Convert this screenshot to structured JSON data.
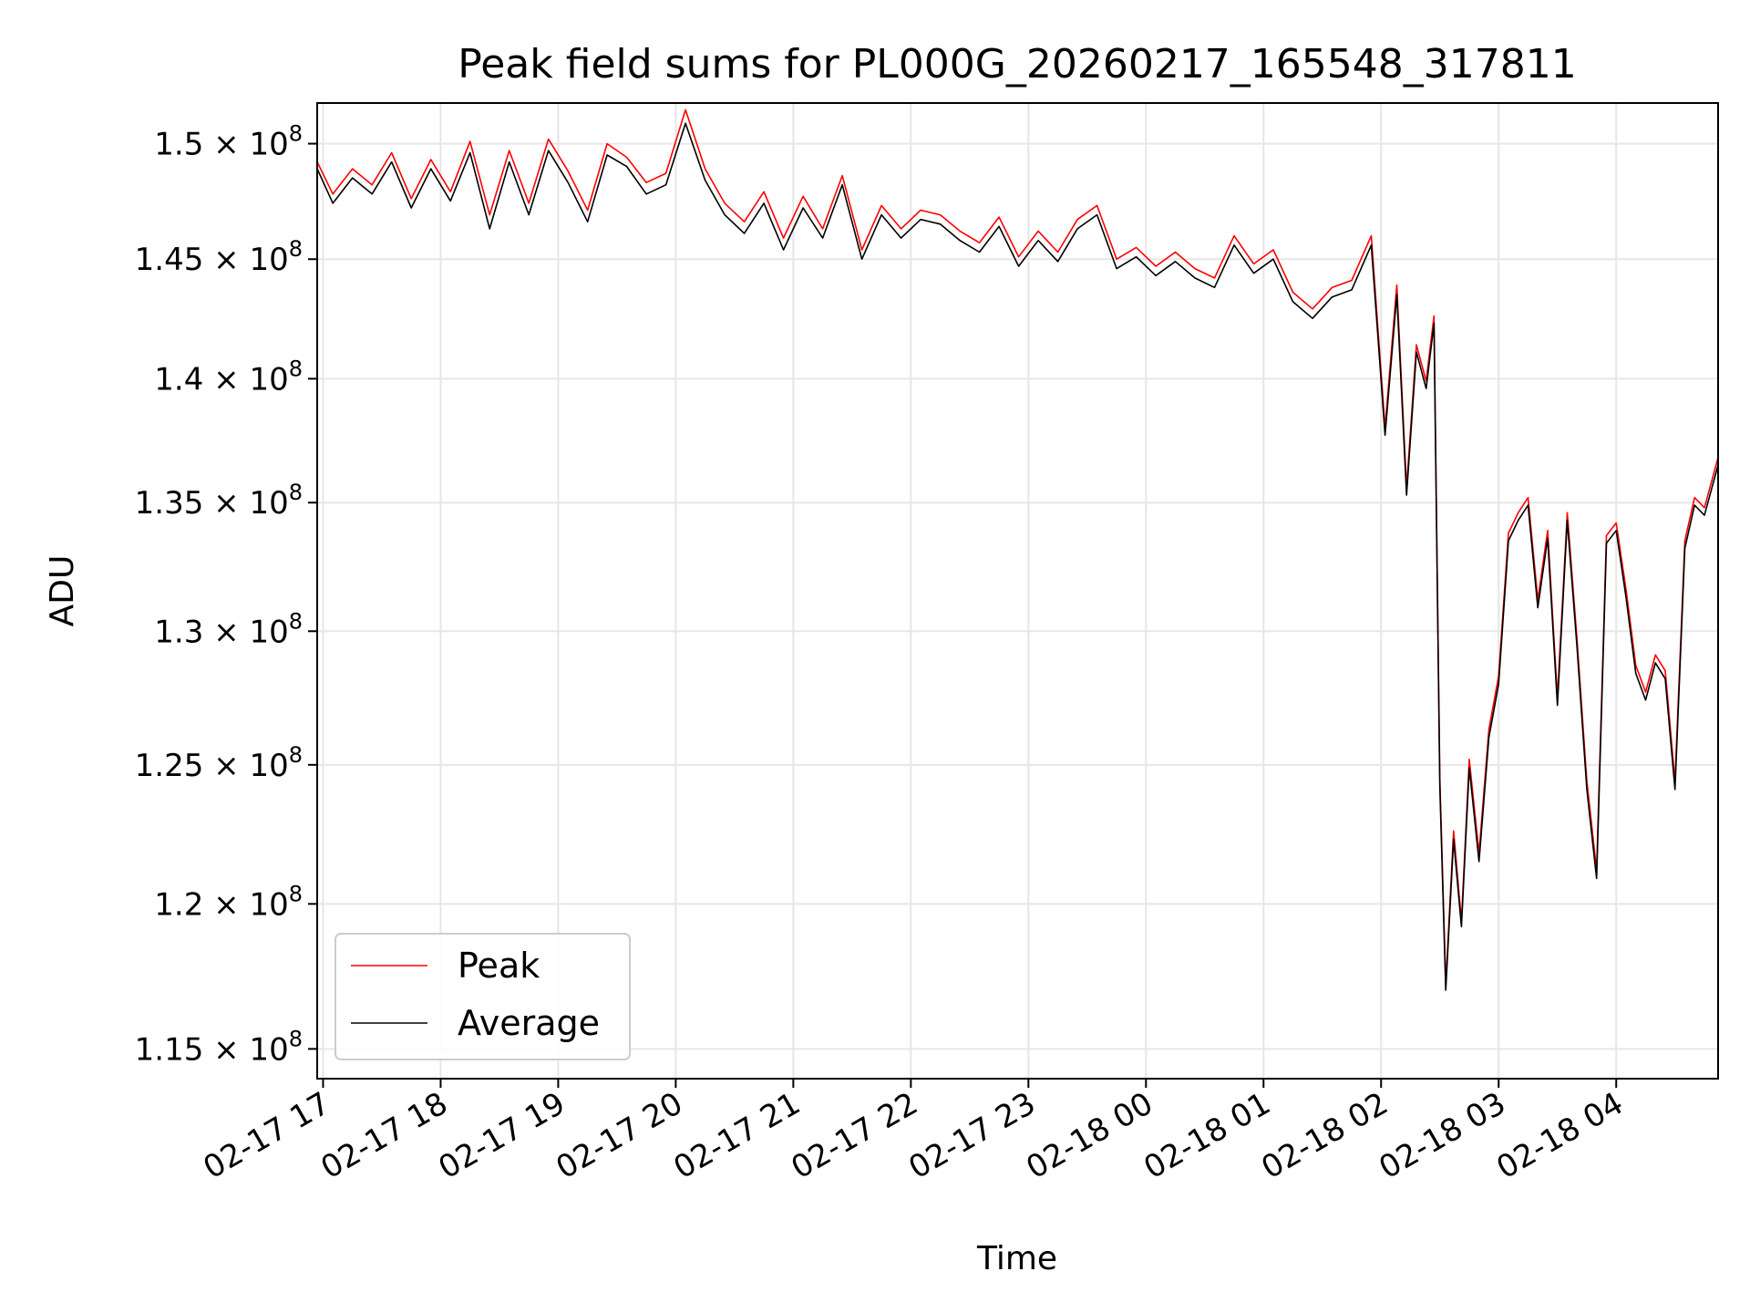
{
  "chart_data": {
    "type": "line",
    "title": "Peak field sums for PL000G_20260217_165548_317811",
    "xlabel": "Time",
    "ylabel": "ADU",
    "x_range": [
      "2026-02-17 16:57",
      "2026-02-18 04:52"
    ],
    "ylim": [
      114000000,
      151800000
    ],
    "y_scale": "log",
    "grid": true,
    "legend_position": "lower-left",
    "x_ticks": [
      "02-17 17",
      "02-17 18",
      "02-17 19",
      "02-17 20",
      "02-17 21",
      "02-17 22",
      "02-17 23",
      "02-18 00",
      "02-18 01",
      "02-18 02",
      "02-18 03",
      "02-18 04"
    ],
    "y_ticks": [
      {
        "value": 115000000,
        "mantissa": "1.15"
      },
      {
        "value": 120000000,
        "mantissa": "1.2"
      },
      {
        "value": 125000000,
        "mantissa": "1.25"
      },
      {
        "value": 130000000,
        "mantissa": "1.3"
      },
      {
        "value": 135000000,
        "mantissa": "1.35"
      },
      {
        "value": 140000000,
        "mantissa": "1.4"
      },
      {
        "value": 145000000,
        "mantissa": "1.45"
      },
      {
        "value": 150000000,
        "mantissa": "1.5"
      }
    ],
    "y_tick_format": {
      "times": "×",
      "base": "10",
      "exponent": "8"
    },
    "series": [
      {
        "name": "Peak",
        "color": "#ff0000",
        "x": [
          "2026-02-17 16:57",
          "2026-02-17 17:05",
          "2026-02-17 17:15",
          "2026-02-17 17:25",
          "2026-02-17 17:35",
          "2026-02-17 17:45",
          "2026-02-17 17:55",
          "2026-02-17 18:05",
          "2026-02-17 18:15",
          "2026-02-17 18:25",
          "2026-02-17 18:35",
          "2026-02-17 18:45",
          "2026-02-17 18:55",
          "2026-02-17 19:05",
          "2026-02-17 19:15",
          "2026-02-17 19:25",
          "2026-02-17 19:35",
          "2026-02-17 19:45",
          "2026-02-17 19:55",
          "2026-02-17 20:05",
          "2026-02-17 20:15",
          "2026-02-17 20:25",
          "2026-02-17 20:35",
          "2026-02-17 20:45",
          "2026-02-17 20:55",
          "2026-02-17 21:05",
          "2026-02-17 21:15",
          "2026-02-17 21:25",
          "2026-02-17 21:35",
          "2026-02-17 21:45",
          "2026-02-17 21:55",
          "2026-02-17 22:05",
          "2026-02-17 22:15",
          "2026-02-17 22:25",
          "2026-02-17 22:35",
          "2026-02-17 22:45",
          "2026-02-17 22:55",
          "2026-02-17 23:05",
          "2026-02-17 23:15",
          "2026-02-17 23:25",
          "2026-02-17 23:35",
          "2026-02-17 23:45",
          "2026-02-17 23:55",
          "2026-02-18 00:05",
          "2026-02-18 00:15",
          "2026-02-18 00:25",
          "2026-02-18 00:35",
          "2026-02-18 00:45",
          "2026-02-18 00:55",
          "2026-02-18 01:05",
          "2026-02-18 01:15",
          "2026-02-18 01:25",
          "2026-02-18 01:35",
          "2026-02-18 01:45",
          "2026-02-18 01:55",
          "2026-02-18 02:02",
          "2026-02-18 02:08",
          "2026-02-18 02:13",
          "2026-02-18 02:18",
          "2026-02-18 02:23",
          "2026-02-18 02:27",
          "2026-02-18 02:30",
          "2026-02-18 02:33",
          "2026-02-18 02:37",
          "2026-02-18 02:41",
          "2026-02-18 02:45",
          "2026-02-18 02:50",
          "2026-02-18 02:55",
          "2026-02-18 03:00",
          "2026-02-18 03:05",
          "2026-02-18 03:10",
          "2026-02-18 03:15",
          "2026-02-18 03:20",
          "2026-02-18 03:25",
          "2026-02-18 03:30",
          "2026-02-18 03:35",
          "2026-02-18 03:40",
          "2026-02-18 03:45",
          "2026-02-18 03:50",
          "2026-02-18 03:55",
          "2026-02-18 04:00",
          "2026-02-18 04:05",
          "2026-02-18 04:10",
          "2026-02-18 04:15",
          "2026-02-18 04:20",
          "2026-02-18 04:25",
          "2026-02-18 04:30",
          "2026-02-18 04:35",
          "2026-02-18 04:40",
          "2026-02-18 04:45",
          "2026-02-18 04:52"
        ],
        "y": [
          149200000,
          147800000,
          148900000,
          148200000,
          149600000,
          147600000,
          149300000,
          147900000,
          150100000,
          146900000,
          149700000,
          147400000,
          150200000,
          148800000,
          147100000,
          150000000,
          149400000,
          148300000,
          148700000,
          151500000,
          148900000,
          147400000,
          146600000,
          147900000,
          145900000,
          147700000,
          146300000,
          148600000,
          145400000,
          147300000,
          146300000,
          147100000,
          146900000,
          146200000,
          145700000,
          146800000,
          145100000,
          146200000,
          145300000,
          146700000,
          147300000,
          145000000,
          145500000,
          144700000,
          145300000,
          144600000,
          144200000,
          146000000,
          144800000,
          145400000,
          143600000,
          142900000,
          143800000,
          144100000,
          146000000,
          138000000,
          143900000,
          135600000,
          141400000,
          139900000,
          142600000,
          124500000,
          117200000,
          122600000,
          119400000,
          125200000,
          121800000,
          126300000,
          128300000,
          133800000,
          134600000,
          135200000,
          131200000,
          133900000,
          127500000,
          134600000,
          129700000,
          124400000,
          121200000,
          133700000,
          134200000,
          131600000,
          128700000,
          127700000,
          129100000,
          128500000,
          124400000,
          133500000,
          135200000,
          134800000,
          136800000
        ]
      },
      {
        "name": "Average",
        "color": "#000000",
        "x": [
          "2026-02-17 16:57",
          "2026-02-17 17:05",
          "2026-02-17 17:15",
          "2026-02-17 17:25",
          "2026-02-17 17:35",
          "2026-02-17 17:45",
          "2026-02-17 17:55",
          "2026-02-17 18:05",
          "2026-02-17 18:15",
          "2026-02-17 18:25",
          "2026-02-17 18:35",
          "2026-02-17 18:45",
          "2026-02-17 18:55",
          "2026-02-17 19:05",
          "2026-02-17 19:15",
          "2026-02-17 19:25",
          "2026-02-17 19:35",
          "2026-02-17 19:45",
          "2026-02-17 19:55",
          "2026-02-17 20:05",
          "2026-02-17 20:15",
          "2026-02-17 20:25",
          "2026-02-17 20:35",
          "2026-02-17 20:45",
          "2026-02-17 20:55",
          "2026-02-17 21:05",
          "2026-02-17 21:15",
          "2026-02-17 21:25",
          "2026-02-17 21:35",
          "2026-02-17 21:45",
          "2026-02-17 21:55",
          "2026-02-17 22:05",
          "2026-02-17 22:15",
          "2026-02-17 22:25",
          "2026-02-17 22:35",
          "2026-02-17 22:45",
          "2026-02-17 22:55",
          "2026-02-17 23:05",
          "2026-02-17 23:15",
          "2026-02-17 23:25",
          "2026-02-17 23:35",
          "2026-02-17 23:45",
          "2026-02-17 23:55",
          "2026-02-18 00:05",
          "2026-02-18 00:15",
          "2026-02-18 00:25",
          "2026-02-18 00:35",
          "2026-02-18 00:45",
          "2026-02-18 00:55",
          "2026-02-18 01:05",
          "2026-02-18 01:15",
          "2026-02-18 01:25",
          "2026-02-18 01:35",
          "2026-02-18 01:45",
          "2026-02-18 01:55",
          "2026-02-18 02:02",
          "2026-02-18 02:08",
          "2026-02-18 02:13",
          "2026-02-18 02:18",
          "2026-02-18 02:23",
          "2026-02-18 02:27",
          "2026-02-18 02:30",
          "2026-02-18 02:33",
          "2026-02-18 02:37",
          "2026-02-18 02:41",
          "2026-02-18 02:45",
          "2026-02-18 02:50",
          "2026-02-18 02:55",
          "2026-02-18 03:00",
          "2026-02-18 03:05",
          "2026-02-18 03:10",
          "2026-02-18 03:15",
          "2026-02-18 03:20",
          "2026-02-18 03:25",
          "2026-02-18 03:30",
          "2026-02-18 03:35",
          "2026-02-18 03:40",
          "2026-02-18 03:45",
          "2026-02-18 03:50",
          "2026-02-18 03:55",
          "2026-02-18 04:00",
          "2026-02-18 04:05",
          "2026-02-18 04:10",
          "2026-02-18 04:15",
          "2026-02-18 04:20",
          "2026-02-18 04:25",
          "2026-02-18 04:30",
          "2026-02-18 04:35",
          "2026-02-18 04:40",
          "2026-02-18 04:45",
          "2026-02-18 04:52"
        ],
        "y": [
          148900000,
          147400000,
          148500000,
          147800000,
          149200000,
          147200000,
          148900000,
          147500000,
          149600000,
          146300000,
          149200000,
          146900000,
          149700000,
          148300000,
          146600000,
          149500000,
          149000000,
          147800000,
          148200000,
          150900000,
          148400000,
          146900000,
          146100000,
          147400000,
          145400000,
          147200000,
          145900000,
          148200000,
          145000000,
          146900000,
          145900000,
          146700000,
          146500000,
          145800000,
          145300000,
          146400000,
          144700000,
          145800000,
          144900000,
          146300000,
          146900000,
          144600000,
          145100000,
          144300000,
          144900000,
          144200000,
          143800000,
          145600000,
          144400000,
          145000000,
          143200000,
          142500000,
          143400000,
          143700000,
          145600000,
          137700000,
          143500000,
          135300000,
          141100000,
          139600000,
          142300000,
          124200000,
          117000000,
          122300000,
          119200000,
          124900000,
          121500000,
          126000000,
          128000000,
          133500000,
          134300000,
          134900000,
          130900000,
          133600000,
          127200000,
          134300000,
          129400000,
          124100000,
          120900000,
          133400000,
          133900000,
          131300000,
          128400000,
          127400000,
          128800000,
          128200000,
          124100000,
          133200000,
          134900000,
          134500000,
          136500000
        ]
      }
    ]
  }
}
